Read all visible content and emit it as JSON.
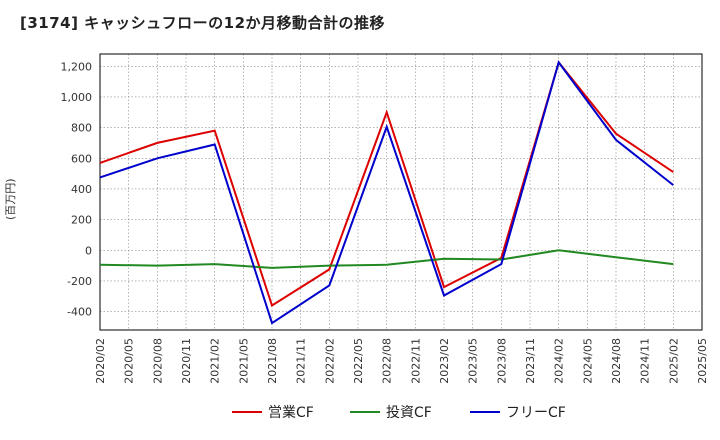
{
  "chart_data": {
    "type": "line",
    "title": "[3174]  キャッシュフローの12か月移動合計の推移",
    "ylabel": "(百万円)",
    "xlabel": "",
    "ylim": [
      -520,
      1280
    ],
    "yticks": [
      1200,
      1000,
      800,
      600,
      400,
      200,
      0,
      -200,
      -400
    ],
    "ytick_labels": [
      "1,200",
      "1,000",
      "800",
      "600",
      "400",
      "200",
      "0",
      "-200",
      "-400"
    ],
    "x_ticks": [
      "2020/02",
      "2020/05",
      "2020/08",
      "2020/11",
      "2021/02",
      "2021/05",
      "2021/08",
      "2021/11",
      "2022/02",
      "2022/05",
      "2022/08",
      "2022/11",
      "2023/02",
      "2023/05",
      "2023/08",
      "2023/11",
      "2024/02",
      "2024/05",
      "2024/08",
      "2024/11",
      "2025/02",
      "2025/05"
    ],
    "grid": true,
    "legend_position": "bottom",
    "series": [
      {
        "name": "営業CF",
        "color": "#dd0000",
        "points": [
          [
            "2020/02",
            570
          ],
          [
            "2020/08",
            700
          ],
          [
            "2021/02",
            780
          ],
          [
            "2021/08",
            -360
          ],
          [
            "2022/02",
            -125
          ],
          [
            "2022/08",
            900
          ],
          [
            "2023/02",
            -240
          ],
          [
            "2023/08",
            -50
          ],
          [
            "2024/02",
            1225
          ],
          [
            "2024/08",
            760
          ],
          [
            "2025/02",
            510
          ]
        ]
      },
      {
        "name": "投資CF",
        "color": "#228822",
        "points": [
          [
            "2020/02",
            -95
          ],
          [
            "2020/08",
            -100
          ],
          [
            "2021/02",
            -90
          ],
          [
            "2021/08",
            -115
          ],
          [
            "2022/02",
            -100
          ],
          [
            "2022/08",
            -95
          ],
          [
            "2023/02",
            -55
          ],
          [
            "2023/08",
            -60
          ],
          [
            "2024/02",
            0
          ],
          [
            "2024/08",
            -45
          ],
          [
            "2025/02",
            -90
          ]
        ]
      },
      {
        "name": "フリーCF",
        "color": "#0000cc",
        "points": [
          [
            "2020/02",
            475
          ],
          [
            "2020/08",
            600
          ],
          [
            "2021/02",
            690
          ],
          [
            "2021/08",
            -475
          ],
          [
            "2022/02",
            -230
          ],
          [
            "2022/08",
            805
          ],
          [
            "2023/02",
            -295
          ],
          [
            "2023/08",
            -90
          ],
          [
            "2024/02",
            1225
          ],
          [
            "2024/08",
            720
          ],
          [
            "2025/02",
            425
          ]
        ]
      }
    ]
  }
}
